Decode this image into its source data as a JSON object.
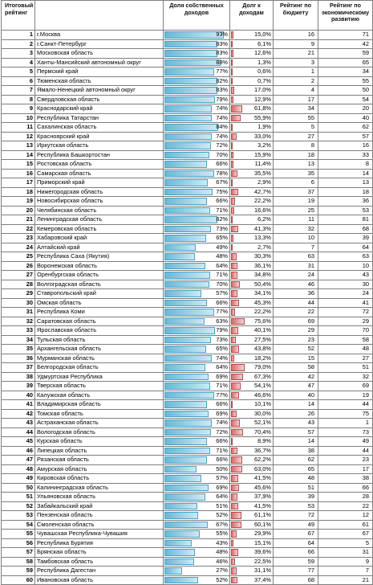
{
  "headers": {
    "rank": "Итоговый рейтинг",
    "name": "",
    "own_income": "Доля собственных доходов",
    "debt": "Долг к доходам",
    "budget": "Рейтинг по бюджету",
    "econ": "Рейтинг по экономическому развитию"
  },
  "colors": {
    "own_bar": "#6ab8d6",
    "debt_bar": "#d86c6c",
    "grid": "#7f7f7f"
  },
  "rows": [
    {
      "rank": "1",
      "name": "г.Москва",
      "own": "93%",
      "own_v": 93,
      "debt": "15,0%",
      "debt_v": 15.0,
      "budget": "16",
      "econ": "71"
    },
    {
      "rank": "2",
      "name": "г.Санкт-Петербург",
      "own": "83%",
      "own_v": 83,
      "debt": "6,1%",
      "debt_v": 6.1,
      "budget": "9",
      "econ": "42"
    },
    {
      "rank": "3",
      "name": "Московская область",
      "own": "83%",
      "own_v": 83,
      "debt": "12,6%",
      "debt_v": 12.6,
      "budget": "21",
      "econ": "59"
    },
    {
      "rank": "4",
      "name": "Ханты-Мансийский автономный округ",
      "own": "88%",
      "own_v": 88,
      "debt": "1,3%",
      "debt_v": 1.3,
      "budget": "3",
      "econ": "65"
    },
    {
      "rank": "5",
      "name": "Пермский край",
      "own": "77%",
      "own_v": 77,
      "debt": "0,6%",
      "debt_v": 0.6,
      "budget": "1",
      "econ": "34"
    },
    {
      "rank": "6",
      "name": "Тюменская область",
      "own": "82%",
      "own_v": 82,
      "debt": "0,7%",
      "debt_v": 0.7,
      "budget": "2",
      "econ": "55"
    },
    {
      "rank": "7",
      "name": "Ямало-Ненецкий автономный округ",
      "own": "83%",
      "own_v": 83,
      "debt": "17,0%",
      "debt_v": 17.0,
      "budget": "4",
      "econ": "50"
    },
    {
      "rank": "8",
      "name": "Свердловская область",
      "own": "79%",
      "own_v": 79,
      "debt": "12,9%",
      "debt_v": 12.9,
      "budget": "17",
      "econ": "54"
    },
    {
      "rank": "9",
      "name": "Краснодарский край",
      "own": "74%",
      "own_v": 74,
      "debt": "61,8%",
      "debt_v": 61.8,
      "budget": "34",
      "econ": "20"
    },
    {
      "rank": "10",
      "name": "Республика Татарстан",
      "own": "74%",
      "own_v": 74,
      "debt": "55,9%",
      "debt_v": 55.9,
      "budget": "55",
      "econ": "40"
    },
    {
      "rank": "11",
      "name": "Сахалинская область",
      "own": "84%",
      "own_v": 84,
      "debt": "1,9%",
      "debt_v": 1.9,
      "budget": "5",
      "econ": "62"
    },
    {
      "rank": "12",
      "name": "Красноярский край",
      "own": "74%",
      "own_v": 74,
      "debt": "33,0%",
      "debt_v": 33.0,
      "budget": "27",
      "econ": "57"
    },
    {
      "rank": "13",
      "name": "Иркутская область",
      "own": "72%",
      "own_v": 72,
      "debt": "3,2%",
      "debt_v": 3.2,
      "budget": "8",
      "econ": "16"
    },
    {
      "rank": "14",
      "name": "Республика Башкортостан",
      "own": "70%",
      "own_v": 70,
      "debt": "15,9%",
      "debt_v": 15.9,
      "budget": "18",
      "econ": "33"
    },
    {
      "rank": "15",
      "name": "Ростовская область",
      "own": "66%",
      "own_v": 66,
      "debt": "11,4%",
      "debt_v": 11.4,
      "budget": "13",
      "econ": "8"
    },
    {
      "rank": "16",
      "name": "Самарская область",
      "own": "78%",
      "own_v": 78,
      "debt": "35,5%",
      "debt_v": 35.5,
      "budget": "35",
      "econ": "14"
    },
    {
      "rank": "17",
      "name": "Приморский край",
      "own": "67%",
      "own_v": 67,
      "debt": "2,9%",
      "debt_v": 2.9,
      "budget": "6",
      "econ": "13"
    },
    {
      "rank": "18",
      "name": "Нижегородская область",
      "own": "75%",
      "own_v": 75,
      "debt": "42,7%",
      "debt_v": 42.7,
      "budget": "37",
      "econ": "18"
    },
    {
      "rank": "19",
      "name": "Новосибирская область",
      "own": "66%",
      "own_v": 66,
      "debt": "22,2%",
      "debt_v": 22.2,
      "budget": "19",
      "econ": "36"
    },
    {
      "rank": "20",
      "name": "Челябинская область",
      "own": "71%",
      "own_v": 71,
      "debt": "16,6%",
      "debt_v": 16.6,
      "budget": "25",
      "econ": "53"
    },
    {
      "rank": "21",
      "name": "Ленинградская область",
      "own": "82%",
      "own_v": 82,
      "debt": "6,2%",
      "debt_v": 6.2,
      "budget": "11",
      "econ": "81"
    },
    {
      "rank": "22",
      "name": "Кемеровская область",
      "own": "73%",
      "own_v": 73,
      "debt": "41,3%",
      "debt_v": 41.3,
      "budget": "32",
      "econ": "68"
    },
    {
      "rank": "23",
      "name": "Хабаровский край",
      "own": "65%",
      "own_v": 65,
      "debt": "13,3%",
      "debt_v": 13.3,
      "budget": "10",
      "econ": "39"
    },
    {
      "rank": "24",
      "name": "Алтайский край",
      "own": "49%",
      "own_v": 49,
      "debt": "2,7%",
      "debt_v": 2.7,
      "budget": "7",
      "econ": "64"
    },
    {
      "rank": "25",
      "name": "Республика Саха (Якутия)",
      "own": "48%",
      "own_v": 48,
      "debt": "30,3%",
      "debt_v": 30.3,
      "budget": "63",
      "econ": "63"
    },
    {
      "rank": "26",
      "name": "Воронежская область",
      "own": "64%",
      "own_v": 64,
      "debt": "36,1%",
      "debt_v": 36.1,
      "budget": "31",
      "econ": "10"
    },
    {
      "rank": "27",
      "name": "Оренбургская область",
      "own": "71%",
      "own_v": 71,
      "debt": "34,8%",
      "debt_v": 34.8,
      "budget": "24",
      "econ": "43"
    },
    {
      "rank": "28",
      "name": "Волгоградская область",
      "own": "70%",
      "own_v": 70,
      "debt": "50,4%",
      "debt_v": 50.4,
      "budget": "46",
      "econ": "30"
    },
    {
      "rank": "29",
      "name": "Ставропольский край",
      "own": "57%",
      "own_v": 57,
      "debt": "34,1%",
      "debt_v": 34.1,
      "budget": "36",
      "econ": "24"
    },
    {
      "rank": "30",
      "name": "Омская область",
      "own": "66%",
      "own_v": 66,
      "debt": "45,3%",
      "debt_v": 45.3,
      "budget": "44",
      "econ": "41"
    },
    {
      "rank": "31",
      "name": "Республика Коми",
      "own": "77%",
      "own_v": 77,
      "debt": "22,2%",
      "debt_v": 22.2,
      "budget": "22",
      "econ": "72"
    },
    {
      "rank": "32",
      "name": "Саратовская область",
      "own": "63%",
      "own_v": 63,
      "debt": "75,6%",
      "debt_v": 75.6,
      "budget": "69",
      "econ": "29"
    },
    {
      "rank": "33",
      "name": "Ярославская область",
      "own": "79%",
      "own_v": 79,
      "debt": "40,1%",
      "debt_v": 40.1,
      "budget": "29",
      "econ": "70"
    },
    {
      "rank": "34",
      "name": "Тульская область",
      "own": "73%",
      "own_v": 73,
      "debt": "27,5%",
      "debt_v": 27.5,
      "budget": "23",
      "econ": "58"
    },
    {
      "rank": "35",
      "name": "Архангельская область",
      "own": "65%",
      "own_v": 65,
      "debt": "43,8%",
      "debt_v": 43.8,
      "budget": "52",
      "econ": "48"
    },
    {
      "rank": "36",
      "name": "Мурманская область",
      "own": "74%",
      "own_v": 74,
      "debt": "18,2%",
      "debt_v": 18.2,
      "budget": "15",
      "econ": "27"
    },
    {
      "rank": "37",
      "name": "Белгородская область",
      "own": "64%",
      "own_v": 64,
      "debt": "79,0%",
      "debt_v": 79.0,
      "budget": "58",
      "econ": "51"
    },
    {
      "rank": "38",
      "name": "Удмуртская Республика",
      "own": "69%",
      "own_v": 69,
      "debt": "67,3%",
      "debt_v": 67.3,
      "budget": "42",
      "econ": "32"
    },
    {
      "rank": "39",
      "name": "Тверская область",
      "own": "71%",
      "own_v": 71,
      "debt": "54,1%",
      "debt_v": 54.1,
      "budget": "47",
      "econ": "69"
    },
    {
      "rank": "40",
      "name": "Калужская область",
      "own": "77%",
      "own_v": 77,
      "debt": "46,6%",
      "debt_v": 46.6,
      "budget": "40",
      "econ": "19"
    },
    {
      "rank": "41",
      "name": "Владимирская область",
      "own": "66%",
      "own_v": 66,
      "debt": "10,1%",
      "debt_v": 10.1,
      "budget": "14",
      "econ": "44"
    },
    {
      "rank": "42",
      "name": "Томская область",
      "own": "69%",
      "own_v": 69,
      "debt": "30,0%",
      "debt_v": 30.0,
      "budget": "26",
      "econ": "75"
    },
    {
      "rank": "43",
      "name": "Астраханская область",
      "own": "74%",
      "own_v": 74,
      "debt": "52,1%",
      "debt_v": 52.1,
      "budget": "43",
      "econ": "1"
    },
    {
      "rank": "44",
      "name": "Вологодская область",
      "own": "72%",
      "own_v": 72,
      "debt": "70,4%",
      "debt_v": 70.4,
      "budget": "57",
      "econ": "73"
    },
    {
      "rank": "45",
      "name": "Курская область",
      "own": "66%",
      "own_v": 66,
      "debt": "8,9%",
      "debt_v": 8.9,
      "budget": "14",
      "econ": "49"
    },
    {
      "rank": "46",
      "name": "Липецкая область",
      "own": "71%",
      "own_v": 71,
      "debt": "36,7%",
      "debt_v": 36.7,
      "budget": "38",
      "econ": "44"
    },
    {
      "rank": "47",
      "name": "Рязанская область",
      "own": "66%",
      "own_v": 66,
      "debt": "62,2%",
      "debt_v": 62.2,
      "budget": "62",
      "econ": "23"
    },
    {
      "rank": "48",
      "name": "Амурская область",
      "own": "50%",
      "own_v": 50,
      "debt": "63,0%",
      "debt_v": 63.0,
      "budget": "65",
      "econ": "17"
    },
    {
      "rank": "49",
      "name": "Кировская область",
      "own": "57%",
      "own_v": 57,
      "debt": "41,5%",
      "debt_v": 41.5,
      "budget": "48",
      "econ": "38"
    },
    {
      "rank": "50",
      "name": "Калининградская область",
      "own": "69%",
      "own_v": 69,
      "debt": "45,6%",
      "debt_v": 45.6,
      "budget": "51",
      "econ": "66"
    },
    {
      "rank": "51",
      "name": "Ульяновская область",
      "own": "64%",
      "own_v": 64,
      "debt": "37,9%",
      "debt_v": 37.9,
      "budget": "39",
      "econ": "28"
    },
    {
      "rank": "52",
      "name": "Забайкальский край",
      "own": "51%",
      "own_v": 51,
      "debt": "41,5%",
      "debt_v": 41.5,
      "budget": "53",
      "econ": "22"
    },
    {
      "rank": "53",
      "name": "Пензенская область",
      "own": "52%",
      "own_v": 52,
      "debt": "61,1%",
      "debt_v": 61.1,
      "budget": "72",
      "econ": "12"
    },
    {
      "rank": "54",
      "name": "Смоленская область",
      "own": "67%",
      "own_v": 67,
      "debt": "60,1%",
      "debt_v": 60.1,
      "budget": "49",
      "econ": "61"
    },
    {
      "rank": "55",
      "name": "Чувашская Республика-Чувашия",
      "own": "55%",
      "own_v": 55,
      "debt": "29,9%",
      "debt_v": 29.9,
      "budget": "67",
      "econ": "67"
    },
    {
      "rank": "56",
      "name": "Республика Бурятия",
      "own": "43%",
      "own_v": 43,
      "debt": "15,1%",
      "debt_v": 15.1,
      "budget": "64",
      "econ": "5"
    },
    {
      "rank": "57",
      "name": "Брянская область",
      "own": "48%",
      "own_v": 48,
      "debt": "39,6%",
      "debt_v": 39.6,
      "budget": "66",
      "econ": "31"
    },
    {
      "rank": "58",
      "name": "Тамбовская область",
      "own": "46%",
      "own_v": 46,
      "debt": "22,5%",
      "debt_v": 22.5,
      "budget": "59",
      "econ": "9"
    },
    {
      "rank": "59",
      "name": "Республика Дагестан",
      "own": "27%",
      "own_v": 27,
      "debt": "31,1%",
      "debt_v": 31.1,
      "budget": "77",
      "econ": "7"
    },
    {
      "rank": "60",
      "name": "Ивановская область",
      "own": "52%",
      "own_v": 52,
      "debt": "37,4%",
      "debt_v": 37.4,
      "budget": "68",
      "econ": "21"
    }
  ]
}
